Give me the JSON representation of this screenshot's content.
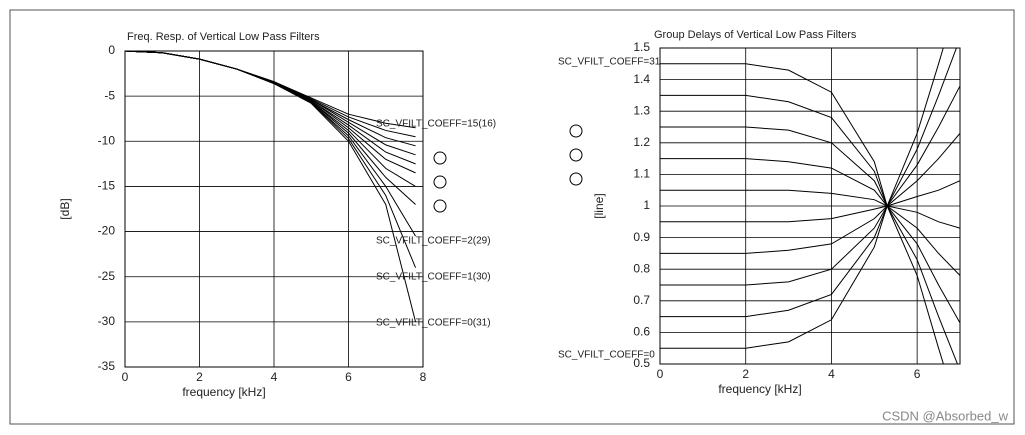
{
  "chart_data": [
    {
      "type": "line",
      "title": "Freq. Resp. of Vertical Low Pass Filters",
      "xlabel": "frequency  [kHz]",
      "ylabel": "[dB]",
      "xlim": [
        0,
        8
      ],
      "xticks": [
        0,
        2,
        4,
        6,
        8
      ],
      "ylim": [
        -35,
        0
      ],
      "yticks": [
        0,
        -5,
        -10,
        -15,
        -20,
        -25,
        -30,
        -35
      ],
      "grid": true,
      "color": "#000000",
      "x": [
        0,
        1,
        2,
        3,
        4,
        5,
        6,
        7,
        7.8
      ],
      "series": [
        {
          "values": [
            0,
            -0.2,
            -0.9,
            -2,
            -3.4,
            -5.2,
            -7,
            -8,
            -8.5
          ]
        },
        {
          "values": [
            0,
            -0.2,
            -0.9,
            -2,
            -3.4,
            -5.3,
            -7.3,
            -8.8,
            -9.5
          ]
        },
        {
          "values": [
            0,
            -0.2,
            -0.9,
            -2,
            -3.5,
            -5.4,
            -7.6,
            -9.6,
            -10.5
          ]
        },
        {
          "values": [
            0,
            -0.2,
            -0.9,
            -2,
            -3.5,
            -5.4,
            -7.9,
            -10.4,
            -11.5
          ]
        },
        {
          "values": [
            0,
            -0.2,
            -0.9,
            -2,
            -3.5,
            -5.5,
            -8.2,
            -11.2,
            -12.5
          ]
        },
        {
          "values": [
            0,
            -0.2,
            -0.9,
            -2,
            -3.5,
            -5.5,
            -8.5,
            -12,
            -13.5
          ]
        },
        {
          "values": [
            0,
            -0.2,
            -0.9,
            -2,
            -3.6,
            -5.6,
            -8.8,
            -13,
            -15
          ]
        },
        {
          "values": [
            0,
            -0.2,
            -0.9,
            -2,
            -3.6,
            -5.6,
            -9.1,
            -14,
            -17
          ]
        },
        {
          "values": [
            0,
            -0.2,
            -0.9,
            -2,
            -3.6,
            -5.7,
            -9.4,
            -15,
            -20.5
          ]
        },
        {
          "values": [
            0,
            -0.2,
            -0.9,
            -2,
            -3.6,
            -5.7,
            -9.7,
            -16,
            -24
          ]
        },
        {
          "values": [
            0,
            -0.2,
            -0.9,
            -2,
            -3.6,
            -5.8,
            -10,
            -17,
            -30
          ]
        }
      ],
      "annotations": [
        "SC_VFILT_COEFF=15(16)",
        "SC_VFILT_COEFF=2(29)",
        "SC_VFILT_COEFF=1(30)",
        "SC_VFILT_COEFF=0(31)"
      ]
    },
    {
      "type": "line",
      "title": "Group Delays of Vertical Low Pass Filters",
      "xlabel": "frequency  [kHz]",
      "ylabel": "[line]",
      "xlim": [
        0,
        7
      ],
      "xticks": [
        0,
        2,
        4,
        6
      ],
      "ylim": [
        0.5,
        1.5
      ],
      "yticks": [
        0.5,
        0.6,
        0.7,
        0.8,
        0.9,
        1,
        1.1,
        1.2,
        1.3,
        1.4,
        1.5
      ],
      "grid": true,
      "color": "#000000",
      "x": [
        0,
        1,
        2,
        3,
        4,
        5,
        5.3,
        6,
        6.5,
        7
      ],
      "series": [
        {
          "values": [
            1.45,
            1.45,
            1.45,
            1.43,
            1.36,
            1.14,
            1,
            0.78,
            0.55,
            0.33
          ]
        },
        {
          "values": [
            1.35,
            1.35,
            1.35,
            1.33,
            1.28,
            1.11,
            1,
            0.83,
            0.65,
            0.48
          ]
        },
        {
          "values": [
            1.25,
            1.25,
            1.25,
            1.24,
            1.2,
            1.08,
            1,
            0.88,
            0.75,
            0.63
          ]
        },
        {
          "values": [
            1.15,
            1.15,
            1.15,
            1.14,
            1.12,
            1.05,
            1,
            0.93,
            0.85,
            0.78
          ]
        },
        {
          "values": [
            1.05,
            1.05,
            1.05,
            1.05,
            1.04,
            1.02,
            1,
            0.98,
            0.95,
            0.93
          ]
        },
        {
          "values": [
            0.95,
            0.95,
            0.95,
            0.95,
            0.96,
            0.99,
            1,
            1.03,
            1.05,
            1.08
          ]
        },
        {
          "values": [
            0.85,
            0.85,
            0.85,
            0.86,
            0.88,
            0.96,
            1,
            1.08,
            1.15,
            1.23
          ]
        },
        {
          "values": [
            0.75,
            0.75,
            0.75,
            0.76,
            0.8,
            0.93,
            1,
            1.13,
            1.25,
            1.38
          ]
        },
        {
          "values": [
            0.65,
            0.65,
            0.65,
            0.67,
            0.72,
            0.9,
            1,
            1.18,
            1.35,
            1.53
          ]
        },
        {
          "values": [
            0.55,
            0.55,
            0.55,
            0.57,
            0.64,
            0.87,
            1,
            1.23,
            1.45,
            1.68
          ]
        }
      ],
      "annotations": [
        "SC_VFILT_COEFF=31",
        "SC_VFILT_COEFF=0"
      ]
    }
  ],
  "watermark": "CSDN @Absorbed_w"
}
